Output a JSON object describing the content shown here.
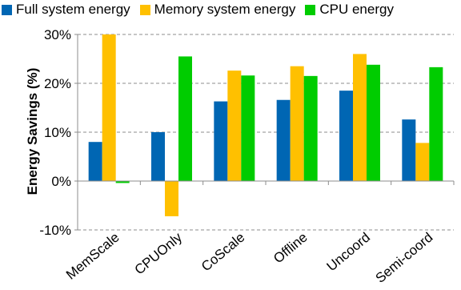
{
  "chart_data": {
    "type": "bar",
    "ylabel": "Energy Savings (%)",
    "xlabel": "",
    "ylim": [
      -10,
      30
    ],
    "yticks": [
      "-10%",
      "0%",
      "10%",
      "20%",
      "30%"
    ],
    "yticks_values": [
      -10,
      0,
      10,
      20,
      30
    ],
    "grid": "horizontal dashed",
    "legend_position": "top",
    "categories": [
      "MemScale",
      "CPUOnly",
      "CoScale",
      "Offline",
      "Uncoord",
      "Semi-coord"
    ],
    "series": [
      {
        "name": "Full system energy",
        "color": "#0066b3",
        "values": [
          8.0,
          10.0,
          16.3,
          16.6,
          18.5,
          12.6
        ]
      },
      {
        "name": "Memory system energy",
        "color": "#ffc000",
        "values": [
          30.0,
          -7.2,
          22.6,
          23.5,
          26.0,
          7.8
        ]
      },
      {
        "name": "CPU energy",
        "color": "#00cc00",
        "values": [
          -0.4,
          25.5,
          21.6,
          21.5,
          23.8,
          23.3
        ]
      }
    ]
  }
}
